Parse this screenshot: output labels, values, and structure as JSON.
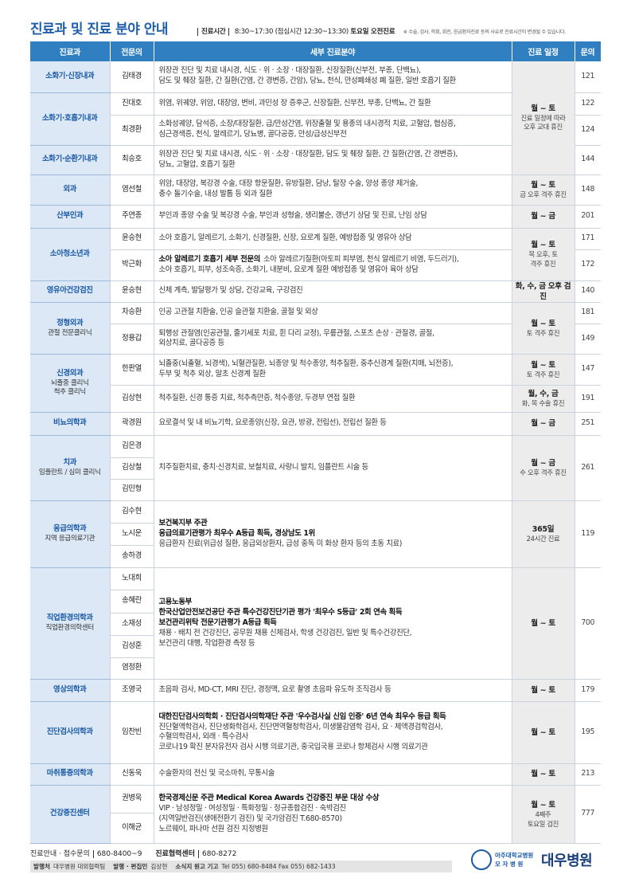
{
  "header": {
    "title": "진료과 및 진료 분야 안내",
    "hours_label": "진료시간",
    "hours": "8:30~17:30",
    "lunch": "(점심시간 12:30~13:30)",
    "saturday": "토요일 오전진료",
    "note": "※ 수술, 검사, 학회, 회진, 응급환자진료 등의 사유로 진료시간이 변경될 수 있습니다."
  },
  "table": {
    "columns": [
      "진료과",
      "전문의",
      "세부 진료분야",
      "진료 일정",
      "문의"
    ],
    "departments": [
      {
        "name": [
          "소화기·신장내과"
        ],
        "schedule": [
          "월 ~ 토",
          "진료 일정에 따라",
          "오후 교대 휴진"
        ],
        "doctors": [
          {
            "name": "김태경",
            "details": [
              "위장관 진단 및 치료 내시경, 식도 · 위 · 소장 · 대장질환, 신장질환(신부전, 부종, 단백뇨),",
              "담도 및 췌장 질환, 간 질환(간염, 간 경변증, 간암), 당뇨, 천식, 만성폐쇄성 폐 질환, 일반 호흡기 질환"
            ],
            "phone": "121"
          }
        ]
      },
      {
        "name": [
          "소화기·호흡기내과"
        ],
        "doctors": [
          {
            "name": "진대호",
            "details": [
              "위염, 위궤양, 위암, 대장암, 변비, 과민성 장 증후군, 신장질환, 신부전, 부종, 단백뇨, 간 질환"
            ],
            "phone": "122"
          },
          {
            "name": "최경환",
            "details": [
              "소화성궤양, 담석증, 소장/대장질환, 급/만성간염, 위장출혈 및 용종의 내시경적 치료, 고혈압, 협심증,",
              "심근경색증, 천식, 알레르기, 당뇨병, 골다공증, 만성/급성신부전"
            ],
            "phone": "124"
          }
        ]
      },
      {
        "name": [
          "소화기·순환기내과"
        ],
        "doctors": [
          {
            "name": "최승호",
            "details": [
              "위장관 진단 및 치료 내시경, 식도 · 위 · 소장 · 대장질환, 담도 및 췌장 질환, 간 질환(간염, 간 경변증),",
              "당뇨, 고혈압, 호흡기 질환"
            ],
            "phone": "144"
          }
        ]
      },
      {
        "name": [
          "외과"
        ],
        "doctors": [
          {
            "name": "염선철",
            "details": [
              "위암, 대장암, 복강경 수술, 대장 항문질환, 유방질환, 담낭, 탈장 수술, 양성 종양 제거술,",
              "충수 돌기수술, 내성 발톱 등 외과 질환"
            ],
            "schedule": [
              "월 ~ 토",
              "금 오후 격주 휴진"
            ],
            "phone": "148"
          }
        ]
      },
      {
        "name": [
          "산부인과"
        ],
        "doctors": [
          {
            "name": "주연종",
            "details": [
              "부인과 종양 수술 및 복강경 수술, 부인과 성형술, 생리불순, 갱년기 상담 및 진료, 난임 상담"
            ],
            "schedule": [
              "월 ~ 금"
            ],
            "phone": "201"
          }
        ]
      },
      {
        "name": [
          "소아청소년과"
        ],
        "schedule": [
          "월 ~ 토",
          "목 오후, 토",
          "격주 휴진"
        ],
        "doctors": [
          {
            "name": "윤승현",
            "details": [
              "소아 호흡기, 알레르기, 소화기, 신경질환, 신장, 요로계 질환, 예방접종 및 영유아 상담"
            ],
            "phone": "171"
          },
          {
            "name": "박근화",
            "lead": "소아 알레르기 호흡기 세부 전문의",
            "details": [
              "소아 알레르기질환(아토피 피부염, 천식 알레르기 비염, 두드러기),",
              "소아 호흡기, 피부, 성조숙증, 소화기, 내분비, 요로계 질환 예방접종 및 영유아 육아 상담"
            ],
            "phone": "172"
          }
        ]
      },
      {
        "name": [
          "영유아건강검진"
        ],
        "doctors": [
          {
            "name": "윤승현",
            "details": [
              "신체 계측, 발달평가 및 상담, 건강교육, 구강검진"
            ],
            "schedule": [
              "화, 수, 금 오후 검진"
            ],
            "phone": "140"
          }
        ]
      },
      {
        "name": [
          "정형외과",
          "관절 전문클리닉"
        ],
        "schedule": [
          "월 ~ 토",
          "토 격주 휴진"
        ],
        "doctors": [
          {
            "name": "차승환",
            "details": [
              "인공 고관절 치환술, 인공 슬관절 치환술, 골절 및 외상"
            ],
            "phone": "181"
          },
          {
            "name": "정용갑",
            "details": [
              "퇴행성 관절염(인공관절, 줄기세포 치료, 휜 다리 교정), 무릎관절, 스포츠 손상 · 관절경, 골절,",
              "외상치료, 골다공증 등"
            ],
            "phone": "149"
          }
        ]
      },
      {
        "name": [
          "신경외과",
          "뇌졸중 클리닉",
          "척추 클리닉"
        ],
        "doctors": [
          {
            "name": "한판열",
            "details": [
              "뇌졸중(뇌출혈, 뇌경색), 뇌혈관질환, 뇌종양 및 척수종양, 척추질환, 중추신경계 질환(치매, 뇌전증),",
              "두부 및 척추 외상, 말초 신경계 질환"
            ],
            "schedule": [
              "월 ~ 토",
              "토 격주 휴진"
            ],
            "phone": "147"
          },
          {
            "name": "김상현",
            "details": [
              "척추질환, 신경 통증 치료, 척추측만증, 척수종양, 두경부 연접 질환"
            ],
            "schedule": [
              "월, 수, 금",
              "화, 목 수술 휴진"
            ],
            "phone": "191"
          }
        ]
      },
      {
        "name": [
          "비뇨의학과"
        ],
        "doctors": [
          {
            "name": "곽경원",
            "details": [
              "요로결석 및 내 비뇨기학, 요로종양(신장, 요관, 방광, 전립선), 전립선 질환 등"
            ],
            "schedule": [
              "월 ~ 금"
            ],
            "phone": "251"
          }
        ]
      },
      {
        "name": [
          "치과",
          "임플란트 / 심미 클리닉"
        ],
        "doctors": [
          {
            "name": "김은경"
          },
          {
            "name": "김상철"
          },
          {
            "name": "김민형"
          }
        ],
        "details": [
          "치주질환치료, 충치·신경치료, 보철치료, 사랑니 발치, 임플란트 시술 등"
        ],
        "schedule": [
          "월 ~ 금",
          "수 오후 격주 휴진"
        ],
        "phone": "261"
      },
      {
        "name": [
          "응급의학과",
          "지역 응급의료기관"
        ],
        "doctors": [
          {
            "name": "김수현"
          },
          {
            "name": "노시운"
          },
          {
            "name": "송하경"
          }
        ],
        "highlights": [
          "보건복지부 주관",
          "응급의료기관평가 최우수 A등급 획득, 경상남도 1위"
        ],
        "details": [
          "응급환자 진료(위급성 질환, 응급외상환자, 급성 중독 미 화상 환자 등의 초동 치료)"
        ],
        "schedule": [
          "365일",
          "24시간 진료"
        ],
        "phone": "119"
      },
      {
        "name": [
          "직업환경의학과",
          "직업환경의학센터"
        ],
        "doctors": [
          {
            "name": "노대희"
          },
          {
            "name": "송혜란"
          },
          {
            "name": "소재성"
          },
          {
            "name": "김성훈"
          },
          {
            "name": "염정환"
          }
        ],
        "highlights": [
          "고용노동부",
          "한국산업안전보건공단 주관 특수건강진단기관 평가 '최우수 S등급' 2회 연속 획득",
          "보건관리위탁 전문기관평가 A등급 획득"
        ],
        "details": [
          "채용 · 배치 전 건강진단, 공무원 채용 신체검사, 학생 건강검진, 일반 및 특수건강진단,",
          "보건관리 대행, 작업환경 측정 등"
        ],
        "schedule": [
          "월 ~ 토"
        ],
        "phone": "700"
      },
      {
        "name": [
          "영상의학과"
        ],
        "doctors": [
          {
            "name": "조영국",
            "details": [
              "초음파 검사, MD-CT, MRI 진단, 경정맥, 요로 촬영 초음파 유도하 조직검사 등"
            ],
            "schedule": [
              "월 ~ 토"
            ],
            "phone": "179"
          }
        ]
      },
      {
        "name": [
          "진단검사의학과"
        ],
        "doctors": [
          {
            "name": "임찬빈",
            "highlights": [
              "대한진단검사의학회 · 진단검사의학재단 주관 '우수검사실 신임 인증' 6년 연속 최우수 등급 획득"
            ],
            "details": [
              "진단혈액학검사, 진단생화학검사, 진단면역혈청학검사, 미생물감염학 검사, 요 · 체액경검학검사,",
              "수혈의학검사, 외래 · 특수검사",
              "코로나19 확진 분자유전자 검사 시행 의료기관, 중국입국용 코로나 항체검사 시행 의료기관"
            ],
            "schedule": [
              "월 ~ 토"
            ],
            "phone": "195"
          }
        ]
      },
      {
        "name": [
          "마취통증의학과"
        ],
        "doctors": [
          {
            "name": "신동욱",
            "details": [
              "수술환자의 전신 및 국소마취, 무통시술"
            ],
            "schedule": [
              "월 ~ 토"
            ],
            "phone": "213"
          }
        ]
      },
      {
        "name": [
          "건강증진센터"
        ],
        "doctors": [
          {
            "name": "권병욱"
          },
          {
            "name": "이해균"
          }
        ],
        "highlights": [
          "한국경제신문 주관 Medical Korea Awards 건강증진 부문 대상 수상"
        ],
        "details": [
          "VIP · 남성정밀 · 여성정밀 · 특화정밀 · 정규종합검진 · 숙박검진",
          "(지역일반검진(생애전환기 검진) 및 국가암검진 T.680-8570)",
          "노르웨이, 파나마 선원 검진 지정병원"
        ],
        "schedule": [
          "월 ~ 토",
          "4째주",
          "토요일 검진"
        ],
        "phone": "777"
      }
    ]
  },
  "footer": {
    "line1": [
      "진료안내 · 접수문의",
      "680-8400~9",
      "진료협력센터",
      "680-8272"
    ],
    "line2": [
      "발행처",
      "대우병원 대외협력팀",
      "발행 · 편집인",
      "김상현",
      "소식지 원고 기고",
      "Tel 055) 680-8484  Fax 055) 682-1433"
    ]
  },
  "logo": {
    "line1": "아주대학교병원",
    "line2": "모 자 병 원",
    "name": "대우병원"
  }
}
